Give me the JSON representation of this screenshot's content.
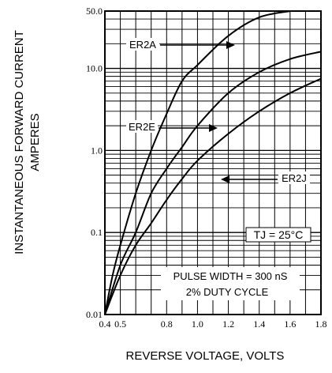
{
  "chart_data": {
    "type": "line",
    "xlabel": "REVERSE VOLTAGE, VOLTS",
    "ylabel": [
      "INSTANTANEOUS FORWARD CURRENT",
      "AMPERES"
    ],
    "xlim": [
      0.4,
      1.8
    ],
    "ylim": [
      0.01,
      50.0
    ],
    "y_scale": "log",
    "grid": true,
    "x_ticks": [
      "0.4",
      "0.5",
      "0.8",
      "1.0",
      "1.2",
      "1.4",
      "1.6",
      "1.8"
    ],
    "y_ticks": [
      "0.01",
      "0.1",
      "1.0",
      "10.0",
      "50.0"
    ],
    "series": [
      {
        "name": "ER2A",
        "x": [
          0.4,
          0.45,
          0.5,
          0.6,
          0.7,
          0.8,
          0.9,
          1.0,
          1.2,
          1.4,
          1.6
        ],
        "y": [
          0.01,
          0.03,
          0.07,
          0.3,
          1.0,
          2.8,
          7.0,
          11.0,
          25.0,
          42.0,
          50.0
        ]
      },
      {
        "name": "ER2E",
        "x": [
          0.4,
          0.5,
          0.6,
          0.7,
          0.8,
          0.9,
          1.0,
          1.2,
          1.4,
          1.6,
          1.8
        ],
        "y": [
          0.01,
          0.04,
          0.1,
          0.3,
          0.6,
          1.1,
          2.0,
          5.0,
          9.0,
          13.0,
          16.0
        ]
      },
      {
        "name": "ER2J",
        "x": [
          0.4,
          0.5,
          0.6,
          0.7,
          0.8,
          0.9,
          1.0,
          1.2,
          1.4,
          1.6,
          1.8
        ],
        "y": [
          0.01,
          0.03,
          0.07,
          0.13,
          0.25,
          0.45,
          0.75,
          1.6,
          3.0,
          5.0,
          7.5
        ]
      }
    ],
    "annotations": [
      "ER2A",
      "ER2E",
      "ER2J",
      "TJ = 25°C",
      "PULSE WIDTH = 300 nS",
      "2% DUTY CYCLE"
    ]
  }
}
